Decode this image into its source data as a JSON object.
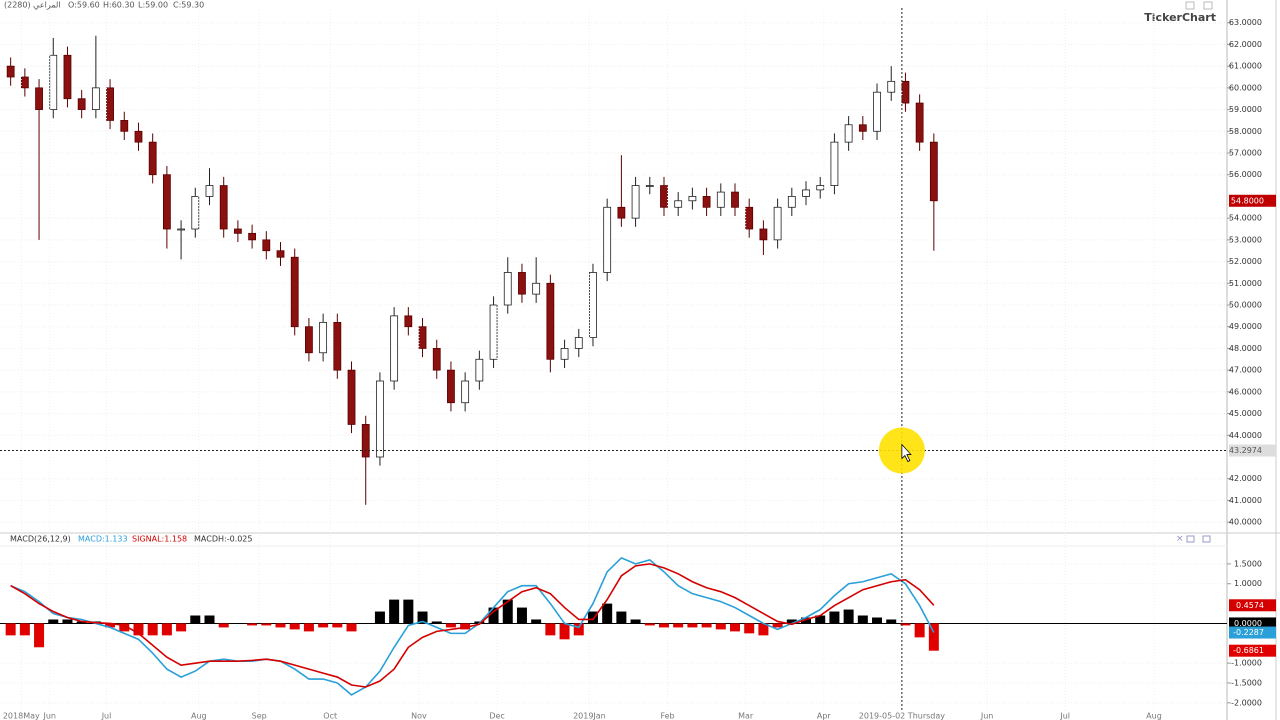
{
  "chart_data": [
    {
      "type": "candlestick",
      "header": {
        "symbol": "المراعي (2280)",
        "open": "O:59.60",
        "high": "H:60.30",
        "low": "L:59.00",
        "close": "C:59.30"
      },
      "watermark": "TickerChart",
      "x": [
        1,
        5,
        9,
        13,
        17,
        21,
        25,
        29,
        33,
        37,
        41,
        45,
        49,
        53,
        57,
        61,
        65,
        69,
        73,
        77,
        81,
        85,
        89,
        93,
        97,
        101,
        105,
        109,
        113,
        117,
        121,
        125,
        129,
        133,
        137,
        141,
        145,
        149,
        153,
        157,
        161,
        165,
        169,
        173,
        177,
        181,
        185,
        189,
        193,
        197,
        201,
        205,
        209,
        213,
        217,
        221,
        225,
        229,
        233,
        237,
        241,
        245,
        249,
        253,
        257,
        261
      ],
      "open": [
        61,
        60.5,
        60,
        59,
        61.5,
        59.5,
        59,
        60,
        58.5,
        58,
        57.5,
        56,
        53.5,
        53.5,
        55,
        55.5,
        53.5,
        53.3,
        53,
        52.5,
        52.2,
        49,
        47.8,
        49.2,
        47,
        44.5,
        43,
        46.5,
        49.5,
        49,
        48,
        47,
        45.5,
        46.5,
        47.5,
        50,
        51.5,
        50.5,
        51,
        47.5,
        48,
        48.5,
        51.5,
        54.5,
        54,
        55.5,
        55.5,
        54.5,
        54.8,
        55,
        54.5,
        55.2,
        54.5,
        53.5,
        53,
        54.5,
        55,
        55.3,
        55.5,
        57.5,
        58.3,
        58,
        59.8,
        60.3,
        59.3,
        57.5
      ],
      "high": [
        61.4,
        60.9,
        60.4,
        62.3,
        61.9,
        59.9,
        62.4,
        60.4,
        58.9,
        58.4,
        57.9,
        56.4,
        53.9,
        55.4,
        56.3,
        55.9,
        53.9,
        53.7,
        53.4,
        52.9,
        52.6,
        49.4,
        49.6,
        49.6,
        47.4,
        44.9,
        46.9,
        49.9,
        49.9,
        49.4,
        48.4,
        47.4,
        46.9,
        47.9,
        50.4,
        52.2,
        51.9,
        52.2,
        51.4,
        48.4,
        48.9,
        51.9,
        54.9,
        56.9,
        55.9,
        55.9,
        55.9,
        55.2,
        55.4,
        55.4,
        55.6,
        55.6,
        54.9,
        53.9,
        54.9,
        55.4,
        55.7,
        55.9,
        57.9,
        58.7,
        58.7,
        60.2,
        61.0,
        60.7,
        59.7,
        57.9
      ],
      "low": [
        60.1,
        59.6,
        53.0,
        58.6,
        59.1,
        58.6,
        58.6,
        58.1,
        57.6,
        57.1,
        55.6,
        52.6,
        52.1,
        53.1,
        54.6,
        53.1,
        52.9,
        52.6,
        52.1,
        51.8,
        48.6,
        47.4,
        47.4,
        46.6,
        44.1,
        40.8,
        42.6,
        46.1,
        48.6,
        47.6,
        46.6,
        45.1,
        45.1,
        46.1,
        47.1,
        49.6,
        50.1,
        50.1,
        46.9,
        47.1,
        47.6,
        48.1,
        51.1,
        53.6,
        53.6,
        55.1,
        54.1,
        54.1,
        54.4,
        54.1,
        54.1,
        54.1,
        53.1,
        52.3,
        52.6,
        54.1,
        54.6,
        54.9,
        55.1,
        57.1,
        57.6,
        57.6,
        59.4,
        58.9,
        57.1,
        52.5
      ],
      "close": [
        60.5,
        60,
        59,
        61.5,
        59.5,
        59,
        60,
        58.5,
        58,
        57.5,
        56,
        53.5,
        53.5,
        55,
        55.5,
        53.5,
        53.3,
        53,
        52.5,
        52.2,
        49,
        47.8,
        49.2,
        47,
        44.5,
        43,
        46.5,
        49.5,
        49,
        48,
        47,
        45.5,
        46.5,
        47.5,
        50,
        51.5,
        50.5,
        51,
        47.5,
        48,
        48.5,
        51.5,
        54.5,
        54,
        55.5,
        55.5,
        54.5,
        54.8,
        55,
        54.5,
        55.2,
        54.5,
        53.5,
        53,
        54.5,
        55,
        55.3,
        55.5,
        57.5,
        58.3,
        58,
        59.8,
        60.3,
        59.3,
        57.5,
        54.8
      ],
      "up_color": "#ffffff",
      "down_color": "#8b1010",
      "xlim": [
        -2,
        343
      ],
      "ylim": [
        39.5,
        64
      ],
      "yticks": [
        {
          "value": 40,
          "label": "40.0000"
        },
        {
          "value": 41,
          "label": "41.0000"
        },
        {
          "value": 42,
          "label": "42.0000"
        },
        {
          "value": 44,
          "label": "44.0000"
        },
        {
          "value": 45,
          "label": "45.0000"
        },
        {
          "value": 46,
          "label": "46.0000"
        },
        {
          "value": 47,
          "label": "47.0000"
        },
        {
          "value": 48,
          "label": "48.0000"
        },
        {
          "value": 49,
          "label": "49.0000"
        },
        {
          "value": 50,
          "label": "50.0000"
        },
        {
          "value": 51,
          "label": "51.0000"
        },
        {
          "value": 52,
          "label": "52.0000"
        },
        {
          "value": 53,
          "label": "53.0000"
        },
        {
          "value": 54,
          "label": "54.0000"
        },
        {
          "value": 56,
          "label": "56.0000"
        },
        {
          "value": 57,
          "label": "57.0000"
        },
        {
          "value": 58,
          "label": "58.0000"
        },
        {
          "value": 59,
          "label": "59.0000"
        },
        {
          "value": 60,
          "label": "60.0000"
        },
        {
          "value": 61,
          "label": "61.0000"
        },
        {
          "value": 62,
          "label": "62.0000"
        },
        {
          "value": 63,
          "label": "63.0000"
        }
      ],
      "last_price": {
        "value": 54.8,
        "label": "54.8000"
      },
      "crosshair": {
        "value": 43.2974,
        "label": "43.2974"
      },
      "grid": true
    },
    {
      "type": "macd",
      "title": "MACD(26,12,9)",
      "x": [
        1,
        5,
        9,
        13,
        17,
        21,
        25,
        29,
        33,
        37,
        41,
        45,
        49,
        53,
        57,
        61,
        65,
        69,
        73,
        77,
        81,
        85,
        89,
        93,
        97,
        101,
        105,
        109,
        113,
        117,
        121,
        125,
        129,
        133,
        137,
        141,
        145,
        149,
        153,
        157,
        161,
        165,
        169,
        173,
        177,
        181,
        185,
        189,
        193,
        197,
        201,
        205,
        209,
        213,
        217,
        221,
        225,
        229,
        233,
        237,
        241,
        245,
        249,
        253,
        257,
        261
      ],
      "series": [
        {
          "name": "MACD:1.133",
          "color": "#2a9fd8",
          "tag": "-0.2287",
          "values": [
            0.95,
            0.8,
            0.55,
            0.25,
            0.15,
            0.1,
            0.0,
            -0.1,
            -0.25,
            -0.4,
            -0.75,
            -1.15,
            -1.35,
            -1.2,
            -0.95,
            -0.9,
            -0.95,
            -0.95,
            -0.9,
            -0.95,
            -1.15,
            -1.4,
            -1.4,
            -1.5,
            -1.8,
            -1.6,
            -1.2,
            -0.6,
            -0.05,
            0.05,
            -0.1,
            -0.25,
            -0.25,
            0.0,
            0.4,
            0.8,
            0.95,
            0.95,
            0.5,
            0.0,
            -0.1,
            0.5,
            1.3,
            1.65,
            1.5,
            1.6,
            1.3,
            0.95,
            0.75,
            0.65,
            0.55,
            0.4,
            0.2,
            0.0,
            -0.15,
            0.0,
            0.15,
            0.35,
            0.7,
            1.0,
            1.05,
            1.15,
            1.25,
            1.0,
            0.45,
            -0.2287
          ]
        },
        {
          "name": "SIGNAL:1.158",
          "color": "#d40000",
          "tag": "0.4574",
          "values": [
            0.95,
            0.75,
            0.5,
            0.3,
            0.15,
            0.05,
            0.02,
            0.0,
            -0.05,
            -0.25,
            -0.55,
            -0.85,
            -1.05,
            -1.0,
            -0.95,
            -0.95,
            -0.95,
            -0.93,
            -0.9,
            -0.95,
            -1.05,
            -1.15,
            -1.25,
            -1.35,
            -1.55,
            -1.6,
            -1.45,
            -1.15,
            -0.6,
            -0.35,
            -0.2,
            -0.15,
            -0.1,
            -0.02,
            0.3,
            0.55,
            0.8,
            0.9,
            0.75,
            0.4,
            0.1,
            0.1,
            0.6,
            1.2,
            1.45,
            1.5,
            1.4,
            1.25,
            1.05,
            0.9,
            0.8,
            0.65,
            0.45,
            0.25,
            0.05,
            -0.02,
            0.1,
            0.2,
            0.45,
            0.65,
            0.85,
            0.95,
            1.05,
            1.1,
            0.85,
            0.4574
          ]
        },
        {
          "name": "MACDH:-0.025",
          "color": "#000000",
          "negative_color": "#e00000",
          "tag": "-0.6861",
          "values": [
            -0.3,
            -0.3,
            -0.6,
            0.1,
            0.1,
            0.05,
            0.05,
            -0.1,
            -0.2,
            -0.3,
            -0.3,
            -0.3,
            -0.2,
            0.2,
            0.2,
            -0.1,
            0.0,
            -0.05,
            -0.05,
            -0.1,
            -0.15,
            -0.2,
            -0.1,
            -0.1,
            -0.2,
            0.0,
            0.3,
            0.6,
            0.6,
            0.3,
            0.05,
            -0.1,
            -0.15,
            0.05,
            0.4,
            0.6,
            0.4,
            0.1,
            -0.3,
            -0.4,
            -0.3,
            0.3,
            0.5,
            0.3,
            0.1,
            -0.05,
            -0.1,
            -0.1,
            -0.1,
            -0.1,
            -0.15,
            -0.2,
            -0.25,
            -0.3,
            -0.1,
            0.1,
            0.15,
            0.2,
            0.3,
            0.35,
            0.2,
            0.15,
            0.1,
            -0.05,
            -0.35,
            -0.6861
          ]
        }
      ],
      "xlim": [
        -2,
        343
      ],
      "ylim": [
        -2.23,
        1.9
      ],
      "yticks": [
        {
          "value": -2,
          "label": "-2.0000"
        },
        {
          "value": -1.5,
          "label": "-1.5000"
        },
        {
          "value": -1,
          "label": "-1.0000"
        },
        {
          "value": 0,
          "label": "0.0000"
        },
        {
          "value": 1,
          "label": "1.0000"
        },
        {
          "value": 1.5,
          "label": "1.5000"
        }
      ],
      "xticks": [
        {
          "value": 4,
          "label": "2018May"
        },
        {
          "value": 12,
          "label": "Jun"
        },
        {
          "value": 28,
          "label": "Jul"
        },
        {
          "value": 54,
          "label": "Aug"
        },
        {
          "value": 71,
          "label": "Sep"
        },
        {
          "value": 91,
          "label": "Oct"
        },
        {
          "value": 116,
          "label": "Nov"
        },
        {
          "value": 138,
          "label": "Dec"
        },
        {
          "value": 164,
          "label": "2019Jan"
        },
        {
          "value": 186,
          "label": "Feb"
        },
        {
          "value": 208,
          "label": "Mar"
        },
        {
          "value": 230,
          "label": "Apr"
        },
        {
          "value": 252,
          "label": "2019-05-02 Thursday"
        },
        {
          "value": 276,
          "label": "Jun"
        },
        {
          "value": 298,
          "label": "Jul"
        },
        {
          "value": 323,
          "label": "Aug"
        }
      ],
      "grid": true
    }
  ]
}
